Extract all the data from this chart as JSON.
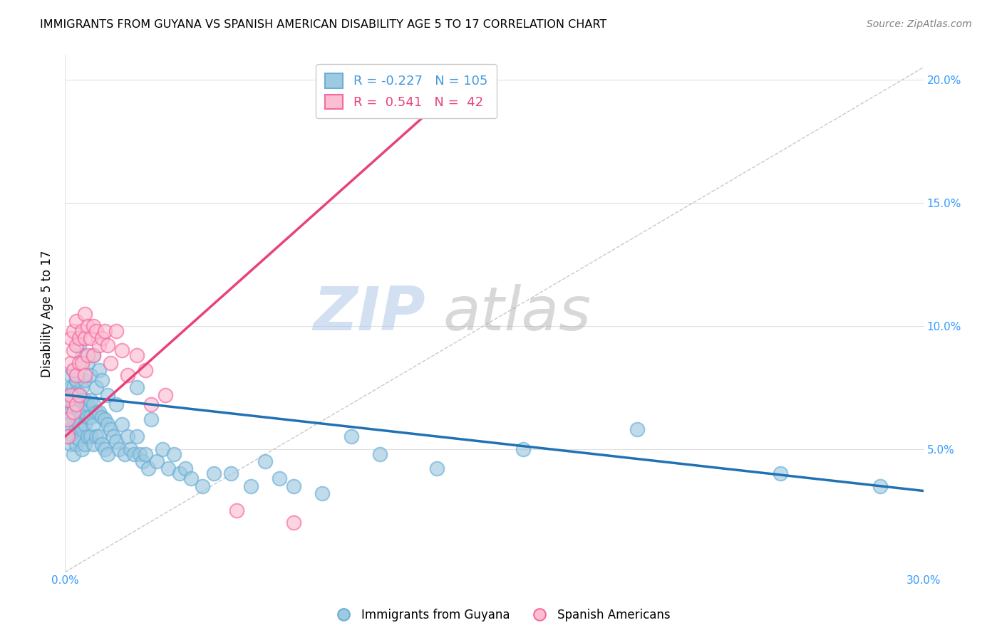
{
  "title": "IMMIGRANTS FROM GUYANA VS SPANISH AMERICAN DISABILITY AGE 5 TO 17 CORRELATION CHART",
  "source": "Source: ZipAtlas.com",
  "ylabel": "Disability Age 5 to 17",
  "xlim": [
    0.0,
    0.3
  ],
  "ylim": [
    0.0,
    0.21
  ],
  "xticks": [
    0.0,
    0.3
  ],
  "yticks": [
    0.0,
    0.05,
    0.1,
    0.15,
    0.2
  ],
  "xtick_labels": [
    "0.0%",
    "30.0%"
  ],
  "ytick_labels": [
    "",
    "5.0%",
    "10.0%",
    "15.0%",
    "20.0%"
  ],
  "blue_color": "#9ecae1",
  "blue_edge_color": "#6baed6",
  "pink_color": "#fcbfd2",
  "pink_edge_color": "#f768a1",
  "blue_line_color": "#2171b5",
  "pink_line_color": "#e8427a",
  "gray_line_color": "#bbbbbb",
  "legend_blue_R": "-0.227",
  "legend_blue_N": "105",
  "legend_pink_R": "0.541",
  "legend_pink_N": "42",
  "watermark_zip": "ZIP",
  "watermark_atlas": "atlas",
  "legend_label_blue": "Immigrants from Guyana",
  "legend_label_pink": "Spanish Americans",
  "blue_x": [
    0.001,
    0.001,
    0.001,
    0.001,
    0.002,
    0.002,
    0.002,
    0.002,
    0.002,
    0.002,
    0.003,
    0.003,
    0.003,
    0.003,
    0.003,
    0.003,
    0.004,
    0.004,
    0.004,
    0.004,
    0.004,
    0.004,
    0.005,
    0.005,
    0.005,
    0.005,
    0.006,
    0.006,
    0.006,
    0.006,
    0.006,
    0.007,
    0.007,
    0.007,
    0.007,
    0.008,
    0.008,
    0.008,
    0.009,
    0.009,
    0.009,
    0.01,
    0.01,
    0.01,
    0.011,
    0.011,
    0.012,
    0.012,
    0.013,
    0.013,
    0.014,
    0.014,
    0.015,
    0.015,
    0.016,
    0.017,
    0.018,
    0.019,
    0.02,
    0.021,
    0.022,
    0.023,
    0.024,
    0.025,
    0.026,
    0.027,
    0.028,
    0.029,
    0.03,
    0.032,
    0.034,
    0.036,
    0.038,
    0.04,
    0.042,
    0.044,
    0.048,
    0.052,
    0.058,
    0.065,
    0.07,
    0.075,
    0.08,
    0.09,
    0.1,
    0.11,
    0.13,
    0.16,
    0.2,
    0.25,
    0.285,
    0.003,
    0.004,
    0.005,
    0.006,
    0.007,
    0.008,
    0.009,
    0.01,
    0.011,
    0.012,
    0.013,
    0.015,
    0.018,
    0.025
  ],
  "blue_y": [
    0.072,
    0.065,
    0.06,
    0.055,
    0.08,
    0.075,
    0.07,
    0.065,
    0.058,
    0.052,
    0.075,
    0.072,
    0.068,
    0.062,
    0.055,
    0.048,
    0.078,
    0.073,
    0.068,
    0.063,
    0.058,
    0.052,
    0.072,
    0.066,
    0.06,
    0.054,
    0.075,
    0.07,
    0.065,
    0.058,
    0.05,
    0.07,
    0.065,
    0.06,
    0.052,
    0.068,
    0.063,
    0.055,
    0.07,
    0.063,
    0.055,
    0.068,
    0.06,
    0.052,
    0.065,
    0.055,
    0.065,
    0.055,
    0.063,
    0.052,
    0.062,
    0.05,
    0.06,
    0.048,
    0.058,
    0.055,
    0.053,
    0.05,
    0.06,
    0.048,
    0.055,
    0.05,
    0.048,
    0.055,
    0.048,
    0.045,
    0.048,
    0.042,
    0.062,
    0.045,
    0.05,
    0.042,
    0.048,
    0.04,
    0.042,
    0.038,
    0.035,
    0.04,
    0.04,
    0.035,
    0.045,
    0.038,
    0.035,
    0.032,
    0.055,
    0.048,
    0.042,
    0.05,
    0.058,
    0.04,
    0.035,
    0.082,
    0.078,
    0.092,
    0.088,
    0.078,
    0.085,
    0.08,
    0.088,
    0.075,
    0.082,
    0.078,
    0.072,
    0.068,
    0.075
  ],
  "pink_x": [
    0.001,
    0.001,
    0.001,
    0.002,
    0.002,
    0.002,
    0.003,
    0.003,
    0.003,
    0.003,
    0.004,
    0.004,
    0.004,
    0.004,
    0.005,
    0.005,
    0.005,
    0.006,
    0.006,
    0.007,
    0.007,
    0.007,
    0.008,
    0.008,
    0.009,
    0.01,
    0.01,
    0.011,
    0.012,
    0.013,
    0.014,
    0.015,
    0.016,
    0.018,
    0.02,
    0.022,
    0.025,
    0.028,
    0.03,
    0.035,
    0.06,
    0.08
  ],
  "pink_y": [
    0.07,
    0.062,
    0.055,
    0.095,
    0.085,
    0.072,
    0.098,
    0.09,
    0.082,
    0.065,
    0.102,
    0.092,
    0.08,
    0.068,
    0.095,
    0.085,
    0.072,
    0.098,
    0.085,
    0.105,
    0.095,
    0.08,
    0.1,
    0.088,
    0.095,
    0.1,
    0.088,
    0.098,
    0.092,
    0.095,
    0.098,
    0.092,
    0.085,
    0.098,
    0.09,
    0.08,
    0.088,
    0.082,
    0.068,
    0.072,
    0.025,
    0.02
  ],
  "blue_trend_x": [
    0.0,
    0.3
  ],
  "blue_trend_y": [
    0.072,
    0.033
  ],
  "pink_trend_x": [
    0.0,
    0.135
  ],
  "pink_trend_y": [
    0.055,
    0.195
  ],
  "diag_line_x": [
    0.0,
    0.3
  ],
  "diag_line_y": [
    0.0,
    0.205
  ]
}
